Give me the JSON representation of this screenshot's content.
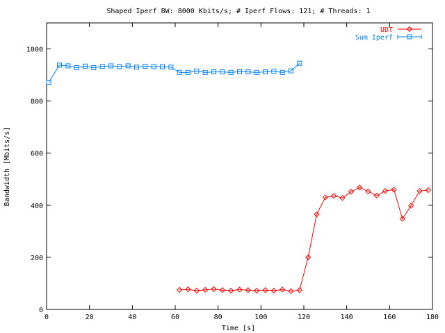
{
  "chart_data": {
    "type": "line",
    "title": "Shaped Iperf BW: 8000 Kbits/s; # Iperf Flows: 121; # Threads: 1",
    "xlabel": "Time [s]",
    "ylabel": "Bandwidth [Mbits/s]",
    "xlim": [
      0,
      180
    ],
    "ylim": [
      0,
      1100
    ],
    "xticks": [
      0,
      20,
      40,
      60,
      80,
      100,
      120,
      140,
      160,
      180
    ],
    "yticks": [
      0,
      200,
      400,
      600,
      800,
      1000
    ],
    "grid": false,
    "legend_position": "top-right",
    "series": [
      {
        "name": "UDT",
        "color": "#ff0000",
        "marker": "diamond",
        "x": [
          62,
          66,
          70,
          74,
          78,
          82,
          86,
          90,
          94,
          98,
          102,
          106,
          110,
          114,
          118,
          122,
          126,
          130,
          134,
          138,
          142,
          146,
          150,
          154,
          158,
          162,
          166,
          170,
          174,
          178
        ],
        "y": [
          75,
          77,
          72,
          75,
          78,
          74,
          72,
          76,
          74,
          72,
          74,
          72,
          76,
          70,
          74,
          200,
          365,
          430,
          436,
          428,
          452,
          468,
          453,
          437,
          455,
          460,
          348,
          398,
          455,
          458
        ]
      },
      {
        "name": "Sum Iperf",
        "color": "#0080ff",
        "marker": "square",
        "x": [
          1,
          6,
          10,
          14,
          18,
          22,
          26,
          30,
          34,
          38,
          42,
          46,
          50,
          54,
          58,
          62,
          66,
          70,
          74,
          78,
          82,
          86,
          90,
          94,
          98,
          102,
          106,
          110,
          114,
          118
        ],
        "y": [
          872,
          938,
          935,
          928,
          934,
          928,
          933,
          935,
          932,
          935,
          930,
          933,
          932,
          932,
          930,
          910,
          910,
          915,
          910,
          912,
          912,
          910,
          913,
          912,
          910,
          912,
          914,
          910,
          916,
          945
        ]
      }
    ]
  }
}
